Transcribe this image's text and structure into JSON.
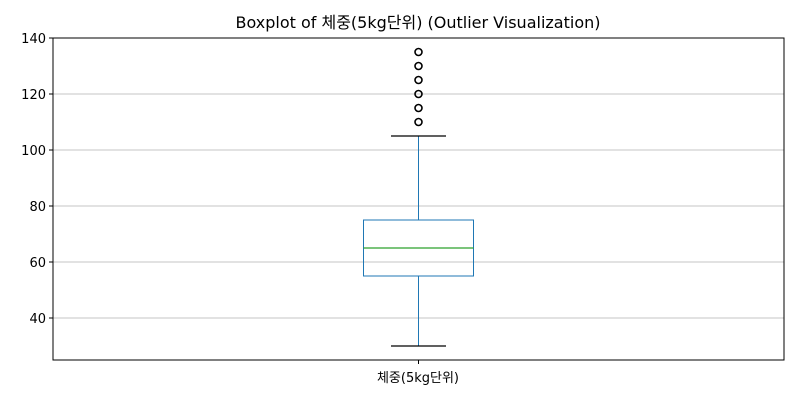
{
  "chart_data": {
    "type": "boxplot",
    "title": "Boxplot of 체중(5kg단위) (Outlier Visualization)",
    "categories": [
      "체중(5kg단위)"
    ],
    "xlabel": "",
    "ylabel": "",
    "ylim": [
      25,
      140
    ],
    "yticks": [
      40,
      60,
      80,
      100,
      120,
      140
    ],
    "grid": true,
    "series": [
      {
        "name": "체중(5kg단위)",
        "whisker_low": 30,
        "q1": 55,
        "median": 65,
        "q3": 75,
        "whisker_high": 105,
        "outliers": [
          110,
          115,
          120,
          125,
          130,
          135
        ]
      }
    ]
  },
  "colors": {
    "box": "#1f77b4",
    "median": "#2ca02c",
    "whisker": "#1f77b4",
    "cap": "#000000",
    "outlier": "#000000",
    "grid": "#b0b0b0",
    "frame": "#000000"
  }
}
